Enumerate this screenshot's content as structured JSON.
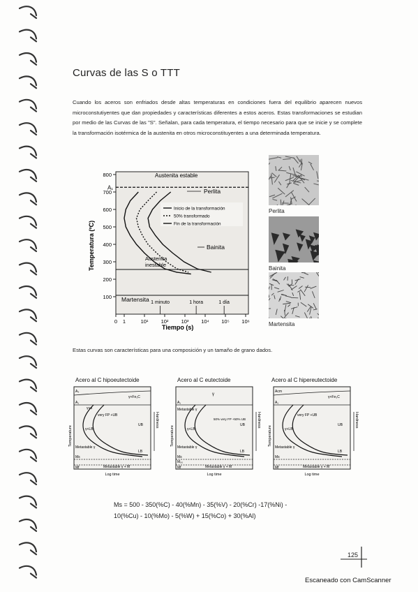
{
  "title": "Curvas de las S o TTT",
  "intro_paragraph": "Cuando los aceros son enfriados desde altas temperaturas en condiciones fuera del equilibrio aparecen nuevos microconstutiyentes que dan propiedades y características diferentes a estos aceros. Estas transformaciones se estudian por medio de las Curvas de las \"S\". Señalan, para cada temperatura, el tiempo necesario para que se inicie y se complete la transformación isotérmica de la austenita en otros microconstituyentes a una determinada temperatura.",
  "chart_data": {
    "type": "line",
    "title": "",
    "xlabel": "Tiempo (s)",
    "ylabel": "Temperatura (ºC)",
    "x_scale": "log",
    "xlim": [
      1,
      1000000
    ],
    "ylim": [
      0,
      800
    ],
    "x_tick_labels": [
      "0",
      "1",
      "10¹",
      "10²",
      "10³",
      "10⁴",
      "10⁵",
      "10⁶"
    ],
    "y_tick_labels": [
      "100",
      "200",
      "300",
      "400",
      "500",
      "600",
      "700",
      "800"
    ],
    "a1_label": "A₁",
    "a1_temperature": 727,
    "time_markers": [
      "1 minuto",
      "1 hora",
      "1 día"
    ],
    "time_marker_values": [
      60,
      3600,
      86400
    ],
    "legend": [
      "Inicio de la transformación",
      "50% transformado",
      "Fin de la transformación"
    ],
    "regions": {
      "austenite_stable": "Austenita estable",
      "pearlite": "Perlita",
      "bainite": "Bainita",
      "austenite_unstable": "Austenita inestable",
      "martensite": "Martensita"
    },
    "series": [
      {
        "name": "Inicio de la transformación",
        "x": [
          5,
          2,
          1.2,
          1,
          1.2,
          2,
          4,
          10,
          30,
          100,
          400,
          2000
        ],
        "y": [
          700,
          650,
          600,
          550,
          500,
          450,
          400,
          350,
          300,
          260,
          240,
          230
        ]
      },
      {
        "name": "50% transformado",
        "x": [
          40,
          15,
          6,
          4,
          5,
          8,
          15,
          40,
          120,
          400,
          1500
        ],
        "y": [
          700,
          650,
          600,
          550,
          500,
          450,
          400,
          350,
          300,
          260,
          240
        ]
      },
      {
        "name": "Fin de la transformación",
        "x": [
          200,
          60,
          25,
          15,
          18,
          35,
          80,
          250,
          900,
          4000,
          20000
        ],
        "y": [
          700,
          650,
          600,
          550,
          500,
          450,
          400,
          350,
          300,
          260,
          240
        ]
      }
    ]
  },
  "micrographs": [
    "Perlita",
    "Bainita",
    "Martensita"
  ],
  "compositions_note": "Estas curvas son características para una composición y un tamaño de grano dados.",
  "small_charts": {
    "titles": [
      "Acero al C hipoeutectoide",
      "Acero al C eutectoide",
      "Acero al C hipereutectoide"
    ],
    "xlabel": "Log time",
    "ylabel": "Temperature",
    "hardness": "Hardness",
    "labels": {
      "ac3": "A₃",
      "acm": "Acm",
      "a1": "A₁",
      "gamma_fe3c": "γ+Fe₃C",
      "gamma": "γ",
      "gamma_alpha": "γ+α",
      "metastable": "Metastable γ",
      "metastable_m": "Metastable γ + M",
      "very_fp_ub": "very FP +UB",
      "fp_50": "50% very FP +50% UB",
      "gamma_lb": "γ+LB",
      "lb": "LB",
      "ub": "UB",
      "ms": "Ms",
      "m50": "M₅₀",
      "mf": "Mf"
    }
  },
  "formula": {
    "line1": "Ms = 500 - 350(%C) - 40(%Mn) - 35(%V) - 20(%Cr) -17(%Ni) -",
    "line2": "10(%Cu) - 10(%Mo) - 5(%W) + 15(%Co) + 30(%Al)"
  },
  "page_number": "125",
  "scanner_watermark": "Escaneado con CamScanner"
}
